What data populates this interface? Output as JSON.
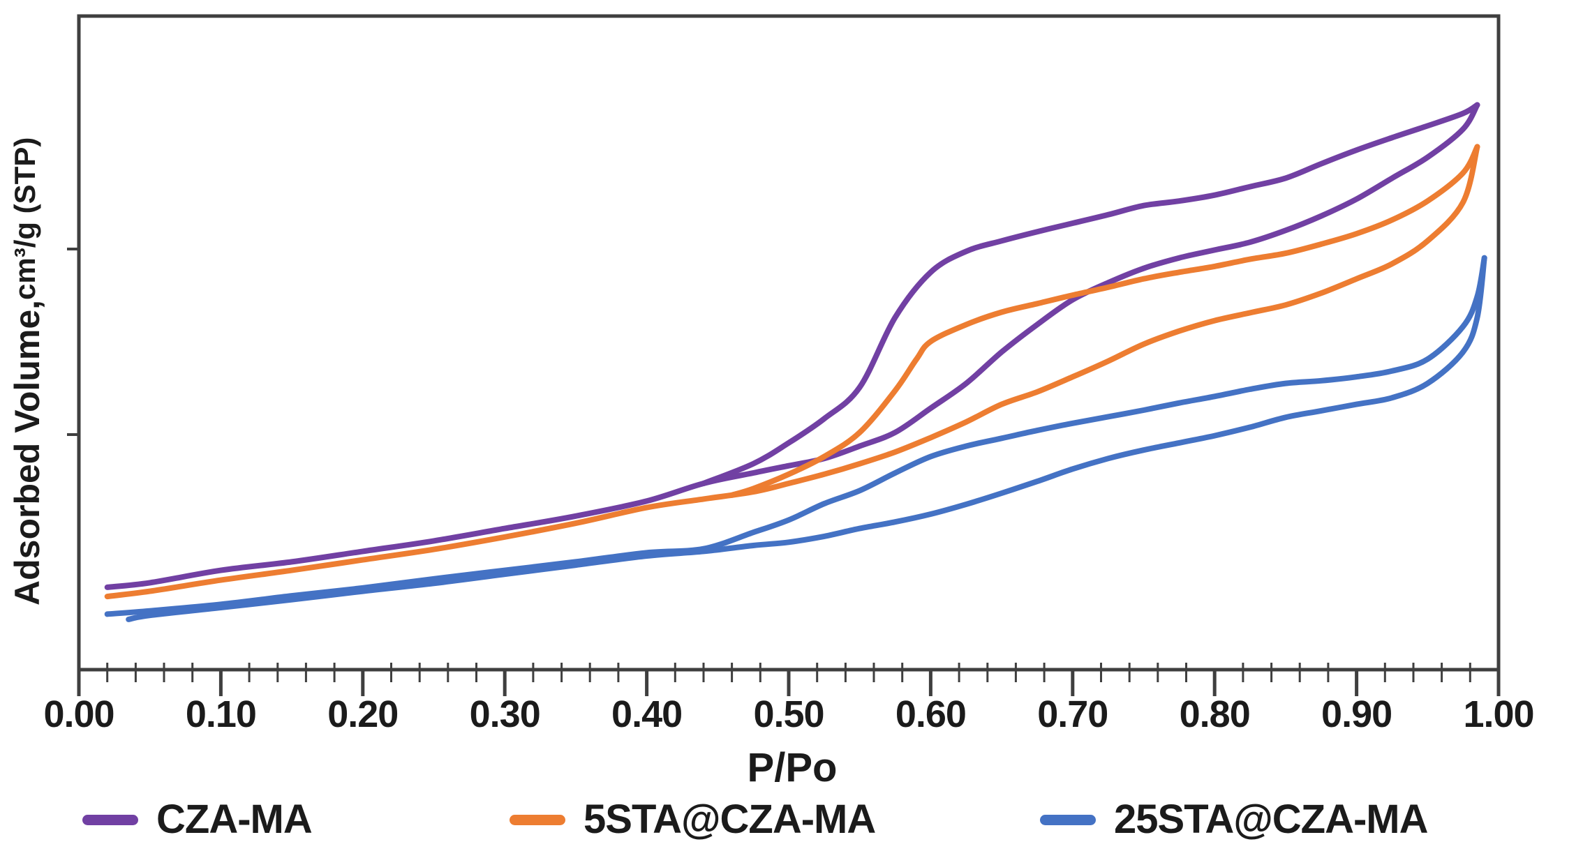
{
  "figure": {
    "background": "#ffffff",
    "frame_color": "#3f3f3f",
    "text_color": "#1b1b1b"
  },
  "axes": {
    "x_title": "P/Po",
    "y_title_main": "Adsorbed Volume,",
    "y_title_units": "cm³/g (STP)",
    "x_tick_labels": [
      "0.00",
      "0.10",
      "0.20",
      "0.30",
      "0.40",
      "0.50",
      "0.60",
      "0.70",
      "0.80",
      "0.90",
      "1.00"
    ]
  },
  "legend": [
    {
      "label": "CZA-MA",
      "color": "#7140A3"
    },
    {
      "label": "5STA@CZA-MA",
      "color": "#ED7D31"
    },
    {
      "label": "25STA@CZA-MA",
      "color": "#4472C4"
    }
  ],
  "chart_data": {
    "type": "line",
    "title": "",
    "xlabel": "P/Po",
    "ylabel": "Adsorbed Volume, cm³/g (STP)",
    "xlim": [
      0.0,
      1.0
    ],
    "x_major_tick_step": 0.1,
    "x_minor_tick_step": 0.02,
    "grid": false,
    "legend_position": "bottom",
    "y_axis_note": "value axis has no numeric tick labels; values below are percent of plot height (0 = axis, 100 = top frame)",
    "series": [
      {
        "name": "CZA-MA",
        "color": "#7140A3",
        "branches": {
          "adsorption": [
            [
              0.02,
              12.6
            ],
            [
              0.05,
              13.3
            ],
            [
              0.1,
              15.2
            ],
            [
              0.15,
              16.5
            ],
            [
              0.2,
              18.1
            ],
            [
              0.25,
              19.7
            ],
            [
              0.3,
              21.6
            ],
            [
              0.35,
              23.5
            ],
            [
              0.4,
              25.8
            ],
            [
              0.44,
              28.5
            ],
            [
              0.475,
              30.1
            ],
            [
              0.5,
              31.2
            ],
            [
              0.525,
              32.3
            ],
            [
              0.55,
              34.2
            ],
            [
              0.575,
              36.3
            ],
            [
              0.6,
              40.0
            ],
            [
              0.625,
              43.8
            ],
            [
              0.65,
              48.6
            ],
            [
              0.675,
              52.8
            ],
            [
              0.7,
              56.6
            ],
            [
              0.725,
              59.2
            ],
            [
              0.75,
              61.4
            ],
            [
              0.775,
              63.0
            ],
            [
              0.8,
              64.2
            ],
            [
              0.825,
              65.4
            ],
            [
              0.85,
              67.2
            ],
            [
              0.875,
              69.4
            ],
            [
              0.9,
              72.0
            ],
            [
              0.925,
              75.2
            ],
            [
              0.95,
              78.4
            ],
            [
              0.975,
              82.7
            ],
            [
              0.985,
              86.4
            ]
          ],
          "desorption": [
            [
              0.44,
              28.5
            ],
            [
              0.475,
              31.5
            ],
            [
              0.5,
              34.7
            ],
            [
              0.525,
              38.4
            ],
            [
              0.55,
              43.2
            ],
            [
              0.575,
              53.9
            ],
            [
              0.6,
              60.8
            ],
            [
              0.625,
              64.0
            ],
            [
              0.65,
              65.6
            ],
            [
              0.675,
              67.0
            ],
            [
              0.7,
              68.3
            ],
            [
              0.725,
              69.6
            ],
            [
              0.75,
              71.0
            ],
            [
              0.775,
              71.7
            ],
            [
              0.8,
              72.6
            ],
            [
              0.825,
              73.9
            ],
            [
              0.85,
              75.2
            ],
            [
              0.875,
              77.4
            ],
            [
              0.9,
              79.5
            ],
            [
              0.925,
              81.4
            ],
            [
              0.95,
              83.2
            ],
            [
              0.975,
              85.1
            ],
            [
              0.985,
              86.4
            ]
          ]
        }
      },
      {
        "name": "5STA@CZA-MA",
        "color": "#ED7D31",
        "branches": {
          "adsorption": [
            [
              0.02,
              11.2
            ],
            [
              0.05,
              12.0
            ],
            [
              0.1,
              13.7
            ],
            [
              0.15,
              15.2
            ],
            [
              0.2,
              16.8
            ],
            [
              0.25,
              18.4
            ],
            [
              0.3,
              20.3
            ],
            [
              0.35,
              22.4
            ],
            [
              0.4,
              24.8
            ],
            [
              0.44,
              26.1
            ],
            [
              0.475,
              27.2
            ],
            [
              0.5,
              28.5
            ],
            [
              0.525,
              29.9
            ],
            [
              0.55,
              31.5
            ],
            [
              0.575,
              33.3
            ],
            [
              0.6,
              35.5
            ],
            [
              0.625,
              37.9
            ],
            [
              0.65,
              40.6
            ],
            [
              0.675,
              42.5
            ],
            [
              0.7,
              44.8
            ],
            [
              0.725,
              47.2
            ],
            [
              0.75,
              49.8
            ],
            [
              0.775,
              51.8
            ],
            [
              0.8,
              53.4
            ],
            [
              0.825,
              54.6
            ],
            [
              0.85,
              55.8
            ],
            [
              0.875,
              57.6
            ],
            [
              0.9,
              59.8
            ],
            [
              0.925,
              62.1
            ],
            [
              0.95,
              65.6
            ],
            [
              0.975,
              71.5
            ],
            [
              0.985,
              80.0
            ]
          ],
          "desorption": [
            [
              0.46,
              26.7
            ],
            [
              0.475,
              27.7
            ],
            [
              0.5,
              29.9
            ],
            [
              0.525,
              32.6
            ],
            [
              0.55,
              36.3
            ],
            [
              0.575,
              42.7
            ],
            [
              0.59,
              47.5
            ],
            [
              0.6,
              50.2
            ],
            [
              0.625,
              52.8
            ],
            [
              0.65,
              54.7
            ],
            [
              0.675,
              56.0
            ],
            [
              0.7,
              57.3
            ],
            [
              0.725,
              58.5
            ],
            [
              0.75,
              59.8
            ],
            [
              0.775,
              60.8
            ],
            [
              0.8,
              61.7
            ],
            [
              0.825,
              62.8
            ],
            [
              0.85,
              63.7
            ],
            [
              0.875,
              65.1
            ],
            [
              0.9,
              66.7
            ],
            [
              0.925,
              68.8
            ],
            [
              0.95,
              71.7
            ],
            [
              0.975,
              76.0
            ],
            [
              0.985,
              80.0
            ]
          ]
        }
      },
      {
        "name": "25STA@CZA-MA",
        "color": "#4472C4",
        "branches": {
          "adsorption": [
            [
              0.035,
              7.7
            ],
            [
              0.05,
              8.3
            ],
            [
              0.1,
              9.5
            ],
            [
              0.15,
              10.7
            ],
            [
              0.2,
              12.0
            ],
            [
              0.25,
              13.2
            ],
            [
              0.3,
              14.6
            ],
            [
              0.35,
              16.0
            ],
            [
              0.4,
              17.4
            ],
            [
              0.44,
              18.1
            ],
            [
              0.475,
              19.0
            ],
            [
              0.5,
              19.5
            ],
            [
              0.525,
              20.4
            ],
            [
              0.55,
              21.6
            ],
            [
              0.575,
              22.6
            ],
            [
              0.6,
              23.8
            ],
            [
              0.625,
              25.3
            ],
            [
              0.65,
              27.0
            ],
            [
              0.675,
              28.8
            ],
            [
              0.7,
              30.7
            ],
            [
              0.725,
              32.3
            ],
            [
              0.75,
              33.6
            ],
            [
              0.775,
              34.7
            ],
            [
              0.8,
              35.8
            ],
            [
              0.825,
              37.1
            ],
            [
              0.85,
              38.6
            ],
            [
              0.875,
              39.6
            ],
            [
              0.9,
              40.6
            ],
            [
              0.925,
              41.6
            ],
            [
              0.95,
              43.8
            ],
            [
              0.975,
              48.6
            ],
            [
              0.985,
              53.9
            ],
            [
              0.99,
              63.0
            ]
          ],
          "desorption": [
            [
              0.02,
              8.5
            ],
            [
              0.05,
              9.0
            ],
            [
              0.1,
              10.0
            ],
            [
              0.15,
              11.3
            ],
            [
              0.2,
              12.5
            ],
            [
              0.25,
              13.9
            ],
            [
              0.3,
              15.2
            ],
            [
              0.35,
              16.5
            ],
            [
              0.4,
              17.9
            ],
            [
              0.44,
              18.5
            ],
            [
              0.475,
              21.0
            ],
            [
              0.5,
              22.9
            ],
            [
              0.525,
              25.4
            ],
            [
              0.55,
              27.4
            ],
            [
              0.575,
              30.1
            ],
            [
              0.6,
              32.6
            ],
            [
              0.625,
              34.2
            ],
            [
              0.65,
              35.4
            ],
            [
              0.675,
              36.6
            ],
            [
              0.7,
              37.7
            ],
            [
              0.725,
              38.7
            ],
            [
              0.75,
              39.7
            ],
            [
              0.775,
              40.8
            ],
            [
              0.8,
              41.8
            ],
            [
              0.825,
              42.9
            ],
            [
              0.85,
              43.8
            ],
            [
              0.875,
              44.2
            ],
            [
              0.9,
              44.8
            ],
            [
              0.925,
              45.7
            ],
            [
              0.95,
              47.5
            ],
            [
              0.975,
              52.5
            ],
            [
              0.985,
              57.1
            ],
            [
              0.99,
              63.0
            ]
          ]
        }
      }
    ]
  }
}
